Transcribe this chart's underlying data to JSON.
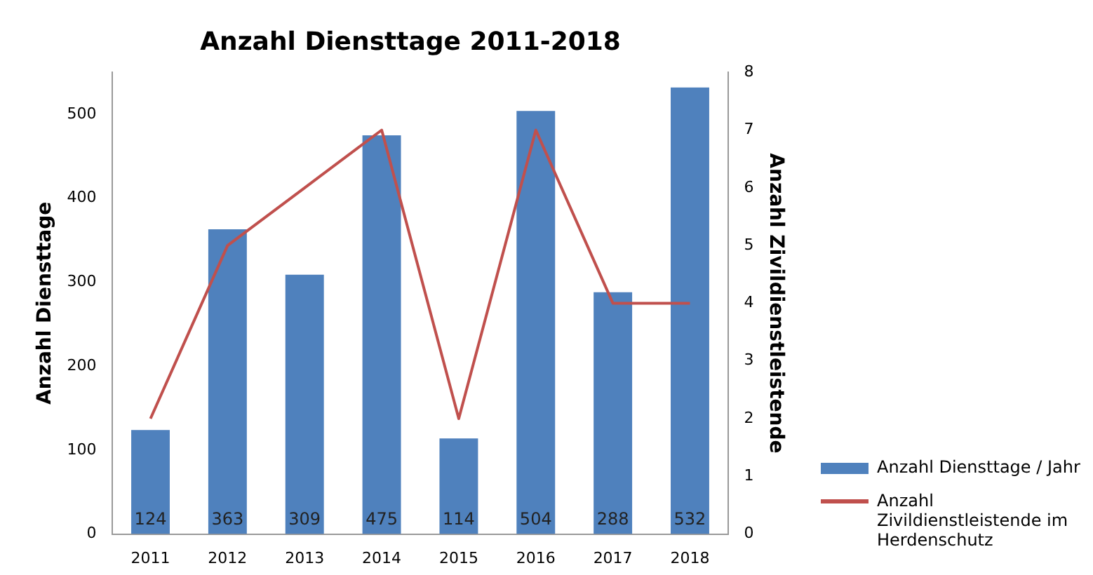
{
  "chart_data": {
    "type": "bar",
    "title": "Anzahl Diensttage 2011-2018",
    "ylabel": "Anzahl Diensttage",
    "y2label": "Anzahl Zivildienstleistende",
    "categories": [
      "2011",
      "2012",
      "2013",
      "2014",
      "2015",
      "2016",
      "2017",
      "2018"
    ],
    "series": [
      {
        "name": "Anzahl Diensttage / Jahr",
        "color": "#4f81bd",
        "values": [
          124,
          363,
          309,
          475,
          114,
          504,
          288,
          532
        ],
        "value_labels": [
          "124",
          "363",
          "309",
          "475",
          "114",
          "504",
          "288",
          "532"
        ]
      },
      {
        "name": "Anzahl Zivildienstleistende im Herdenschutz",
        "type": "line",
        "axis": "y2",
        "color": "#c0504d",
        "values": [
          2,
          5,
          6,
          7,
          2,
          7,
          4,
          4
        ]
      }
    ],
    "ylim": [
      0,
      550
    ],
    "yticks": [
      0,
      100,
      200,
      300,
      400,
      500
    ],
    "y2lim": [
      0,
      8
    ],
    "y2ticks": [
      0,
      1,
      2,
      3,
      4,
      5,
      6,
      7,
      8
    ],
    "grid": false,
    "legend": "bottom right",
    "marker": "none"
  }
}
